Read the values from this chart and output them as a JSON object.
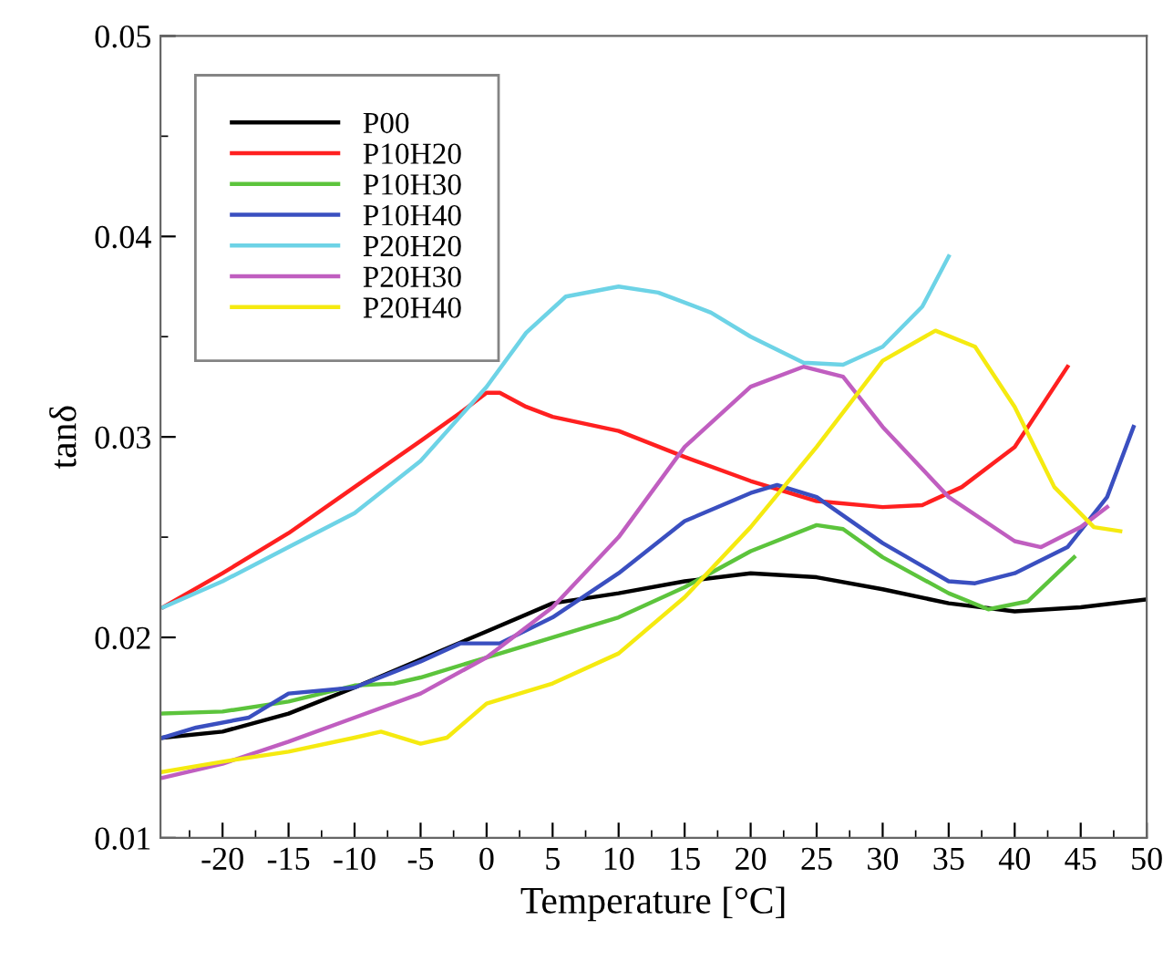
{
  "chart_data": {
    "type": "line",
    "xlabel": "Temperature [°C]",
    "ylabel": "tanδ",
    "xlim": [
      -24.7,
      50
    ],
    "xticks": [
      -20,
      -15,
      -10,
      -5,
      0,
      5,
      10,
      15,
      20,
      25,
      30,
      35,
      40,
      45,
      50
    ],
    "ylim": [
      0.01,
      0.05
    ],
    "yticks": [
      0.01,
      0.02,
      0.03,
      0.04,
      0.05
    ],
    "grid": false,
    "legend": "top left",
    "marker": "none",
    "line_style": "solid",
    "series": [
      {
        "name": "P00",
        "color": "#000000",
        "x": [
          -24.5,
          -20,
          -15,
          -10,
          0,
          5,
          10,
          15,
          20,
          25,
          30,
          35,
          40,
          45,
          50
        ],
        "values": [
          0.015,
          0.0153,
          0.0162,
          0.0175,
          0.0203,
          0.0217,
          0.0222,
          0.0228,
          0.0232,
          0.023,
          0.0224,
          0.0217,
          0.0213,
          0.0215,
          0.0219
        ]
      },
      {
        "name": "P10H20",
        "color": "#ff2020",
        "x": [
          -24.5,
          -20,
          -15,
          -10,
          -5,
          -2,
          0,
          1,
          3,
          5,
          10,
          15,
          20,
          25,
          30,
          33,
          36,
          40,
          44
        ],
        "values": [
          0.0215,
          0.0232,
          0.0252,
          0.0275,
          0.0298,
          0.0312,
          0.0322,
          0.0322,
          0.0315,
          0.031,
          0.0303,
          0.029,
          0.0278,
          0.0268,
          0.0265,
          0.0266,
          0.0275,
          0.0295,
          0.0335
        ]
      },
      {
        "name": "P10H30",
        "color": "#5cc43c",
        "x": [
          -24.5,
          -20,
          -15,
          -10,
          -7,
          -5,
          0,
          5,
          10,
          15,
          20,
          25,
          27,
          30,
          35,
          38,
          41,
          44.5
        ],
        "values": [
          0.0162,
          0.0163,
          0.0168,
          0.0176,
          0.0177,
          0.018,
          0.019,
          0.02,
          0.021,
          0.0225,
          0.0243,
          0.0256,
          0.0254,
          0.024,
          0.0222,
          0.0214,
          0.0218,
          0.024
        ]
      },
      {
        "name": "P10H40",
        "color": "#3a4fc0",
        "x": [
          -24.5,
          -22,
          -18,
          -15,
          -10,
          -5,
          -2,
          1,
          5,
          10,
          15,
          20,
          22,
          25,
          30,
          35,
          37,
          40,
          44,
          47,
          49
        ],
        "values": [
          0.015,
          0.0155,
          0.016,
          0.0172,
          0.0175,
          0.0188,
          0.0197,
          0.0197,
          0.021,
          0.0232,
          0.0258,
          0.0272,
          0.0276,
          0.027,
          0.0247,
          0.0228,
          0.0227,
          0.0232,
          0.0245,
          0.027,
          0.0305
        ]
      },
      {
        "name": "P20H20",
        "color": "#6dd3e6",
        "x": [
          -24.5,
          -20,
          -15,
          -10,
          -5,
          0,
          3,
          6,
          10,
          13,
          17,
          20,
          24,
          27,
          30,
          33,
          35
        ],
        "values": [
          0.0215,
          0.0228,
          0.0245,
          0.0262,
          0.0288,
          0.0325,
          0.0352,
          0.037,
          0.0375,
          0.0372,
          0.0362,
          0.035,
          0.0337,
          0.0336,
          0.0345,
          0.0365,
          0.039
        ]
      },
      {
        "name": "P20H30",
        "color": "#c05ec0",
        "x": [
          -24.5,
          -20,
          -15,
          -10,
          -5,
          0,
          5,
          10,
          15,
          20,
          24,
          27,
          30,
          35,
          40,
          42,
          45,
          47
        ],
        "values": [
          0.013,
          0.0137,
          0.0148,
          0.016,
          0.0172,
          0.019,
          0.0215,
          0.025,
          0.0295,
          0.0325,
          0.0335,
          0.033,
          0.0305,
          0.027,
          0.0248,
          0.0245,
          0.0255,
          0.0265
        ]
      },
      {
        "name": "P20H40",
        "color": "#f5ea10",
        "x": [
          -24.5,
          -20,
          -15,
          -10,
          -8,
          -5,
          -3,
          0,
          5,
          10,
          15,
          20,
          25,
          30,
          34,
          37,
          40,
          43,
          46,
          48
        ],
        "values": [
          0.0133,
          0.0138,
          0.0143,
          0.015,
          0.0153,
          0.0147,
          0.015,
          0.0167,
          0.0177,
          0.0192,
          0.022,
          0.0255,
          0.0295,
          0.0338,
          0.0353,
          0.0345,
          0.0315,
          0.0275,
          0.0255,
          0.0253
        ]
      }
    ]
  }
}
